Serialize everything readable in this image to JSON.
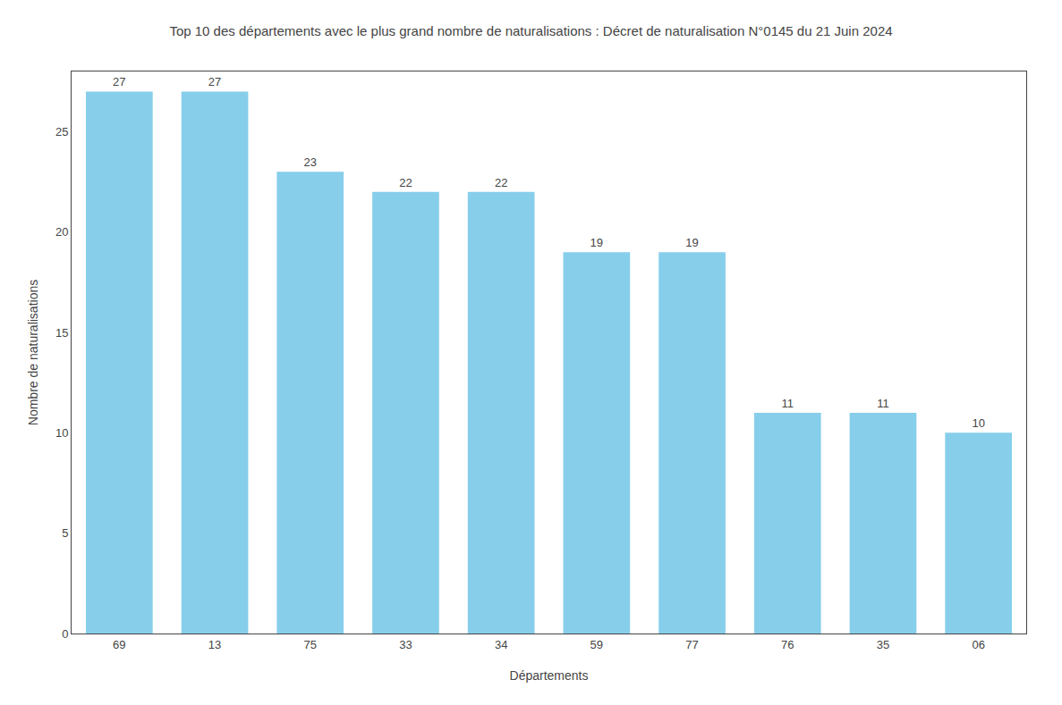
{
  "chart_data": {
    "type": "bar",
    "title": "Top 10 des départements avec le plus grand nombre de naturalisations : Décret de naturalisation N°0145 du 21 Juin 2024",
    "xlabel": "Départements",
    "ylabel": "Nombre de naturalisations",
    "categories": [
      "69",
      "13",
      "75",
      "33",
      "34",
      "59",
      "77",
      "76",
      "35",
      "06"
    ],
    "values": [
      27,
      27,
      23,
      22,
      22,
      19,
      19,
      11,
      11,
      10
    ],
    "color": "#87CEEB",
    "ylim": [
      0,
      28
    ],
    "yticks": [
      0,
      5,
      10,
      15,
      20,
      25
    ],
    "grid": false,
    "data_labels": true
  }
}
